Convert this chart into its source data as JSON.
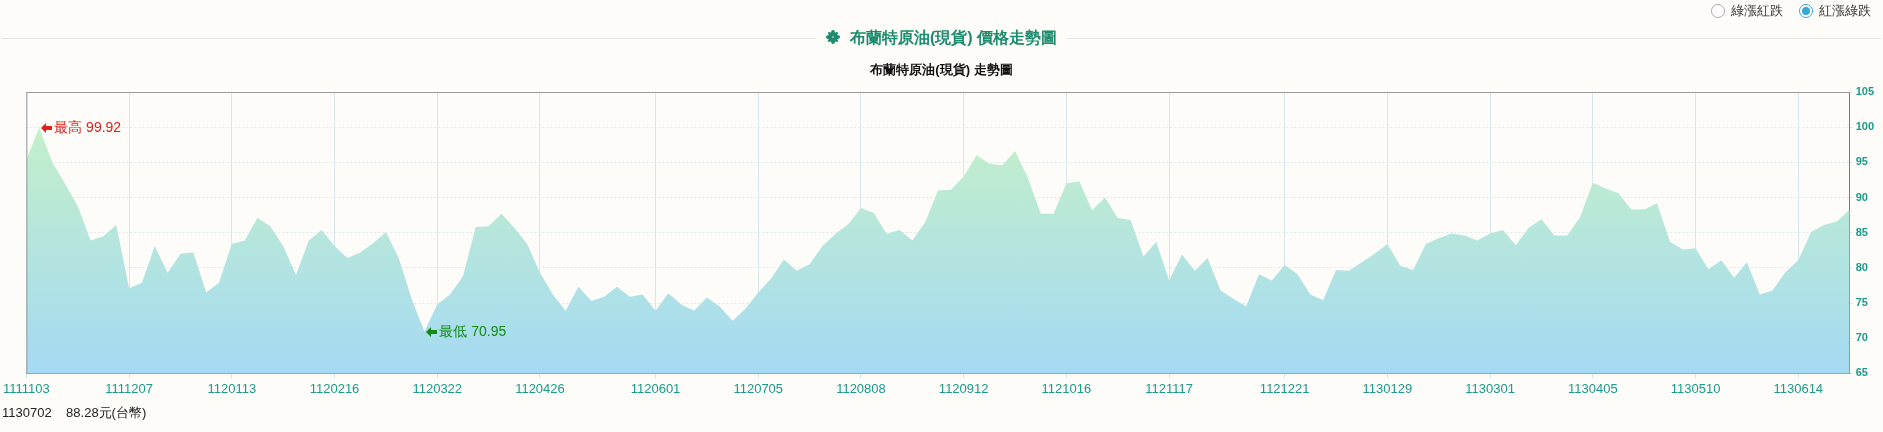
{
  "chart_data": {
    "type": "area",
    "title": "布蘭特原油(現貨) 價格走勢圖",
    "subtitle": "布蘭特原油(現貨) 走勢圖",
    "categories": [
      "1111103",
      null,
      null,
      null,
      null,
      null,
      null,
      null,
      "1111207",
      null,
      null,
      null,
      null,
      null,
      null,
      null,
      "1120113",
      null,
      null,
      null,
      null,
      null,
      null,
      null,
      "1120216",
      null,
      null,
      null,
      null,
      null,
      null,
      null,
      "1120322",
      null,
      null,
      null,
      null,
      null,
      null,
      null,
      "1120426",
      null,
      null,
      null,
      null,
      null,
      null,
      null,
      null,
      "1120601",
      null,
      null,
      null,
      null,
      null,
      null,
      null,
      "1120705",
      null,
      null,
      null,
      null,
      null,
      null,
      null,
      "1120808",
      null,
      null,
      null,
      null,
      null,
      null,
      null,
      "1120912",
      null,
      null,
      null,
      null,
      null,
      null,
      null,
      "1121016",
      null,
      null,
      null,
      null,
      null,
      null,
      null,
      "1121117",
      null,
      null,
      null,
      null,
      null,
      null,
      null,
      null,
      "1121221",
      null,
      null,
      null,
      null,
      null,
      null,
      null,
      "1130129",
      null,
      null,
      null,
      null,
      null,
      null,
      null,
      "1130301",
      null,
      null,
      null,
      null,
      null,
      null,
      null,
      "1130405",
      null,
      null,
      null,
      null,
      null,
      null,
      null,
      "1130510",
      null,
      null,
      null,
      null,
      null,
      null,
      null,
      "1130614",
      null,
      null,
      null,
      null
    ],
    "series": [
      {
        "color": "#c8f2c4",
        "values": [
          95.4,
          99.92,
          95.1,
          92.0,
          88.8,
          83.9,
          84.5,
          86.1,
          77.1,
          77.9,
          83.1,
          79.3,
          82.0,
          82.2,
          76.5,
          77.9,
          83.4,
          83.9,
          87.1,
          85.9,
          83.1,
          79.0,
          83.9,
          85.4,
          83.1,
          81.4,
          82.2,
          83.5,
          85.1,
          81.4,
          75.6,
          70.95,
          74.8,
          76.2,
          78.8,
          85.8,
          85.9,
          87.7,
          85.7,
          83.4,
          79.3,
          76.2,
          73.9,
          77.3,
          75.3,
          75.9,
          77.3,
          75.9,
          76.2,
          73.9,
          76.4,
          74.8,
          73.9,
          75.8,
          74.5,
          72.5,
          74.2,
          76.5,
          78.5,
          81.2,
          79.6,
          80.5,
          83.1,
          84.8,
          86.2,
          88.5,
          87.8,
          84.8,
          85.4,
          83.9,
          86.5,
          91.0,
          91.1,
          93.0,
          96.0,
          94.8,
          94.6,
          96.6,
          92.8,
          87.7,
          87.7,
          92.0,
          92.3,
          88.2,
          90.0,
          87.1,
          86.8,
          81.6,
          83.7,
          78.2,
          81.9,
          79.6,
          81.4,
          76.8,
          75.6,
          74.5,
          79.1,
          78.2,
          80.4,
          79.1,
          76.2,
          75.4,
          79.7,
          79.6,
          80.8,
          82.0,
          83.4,
          80.3,
          79.7,
          83.4,
          84.2,
          84.9,
          84.6,
          83.9,
          84.9,
          85.4,
          83.2,
          85.7,
          86.9,
          84.6,
          84.6,
          87.2,
          92.1,
          91.3,
          90.6,
          88.3,
          88.3,
          89.2,
          83.7,
          82.6,
          82.8,
          79.8,
          81.1,
          78.6,
          80.8,
          76.2,
          76.8,
          79.4,
          81.1,
          85.1,
          86.1,
          86.6,
          88.28
        ]
      }
    ],
    "ylim": [
      65,
      105
    ],
    "yticks": [
      65,
      70,
      75,
      80,
      85,
      90,
      95,
      100,
      105
    ],
    "grid": true,
    "marker": "none",
    "annotations": [
      "綠漲紅跌",
      "紅漲綠跌",
      "1130702    88.28元(台幣)",
      "最高 99.92",
      "最低 70.95"
    ]
  }
}
